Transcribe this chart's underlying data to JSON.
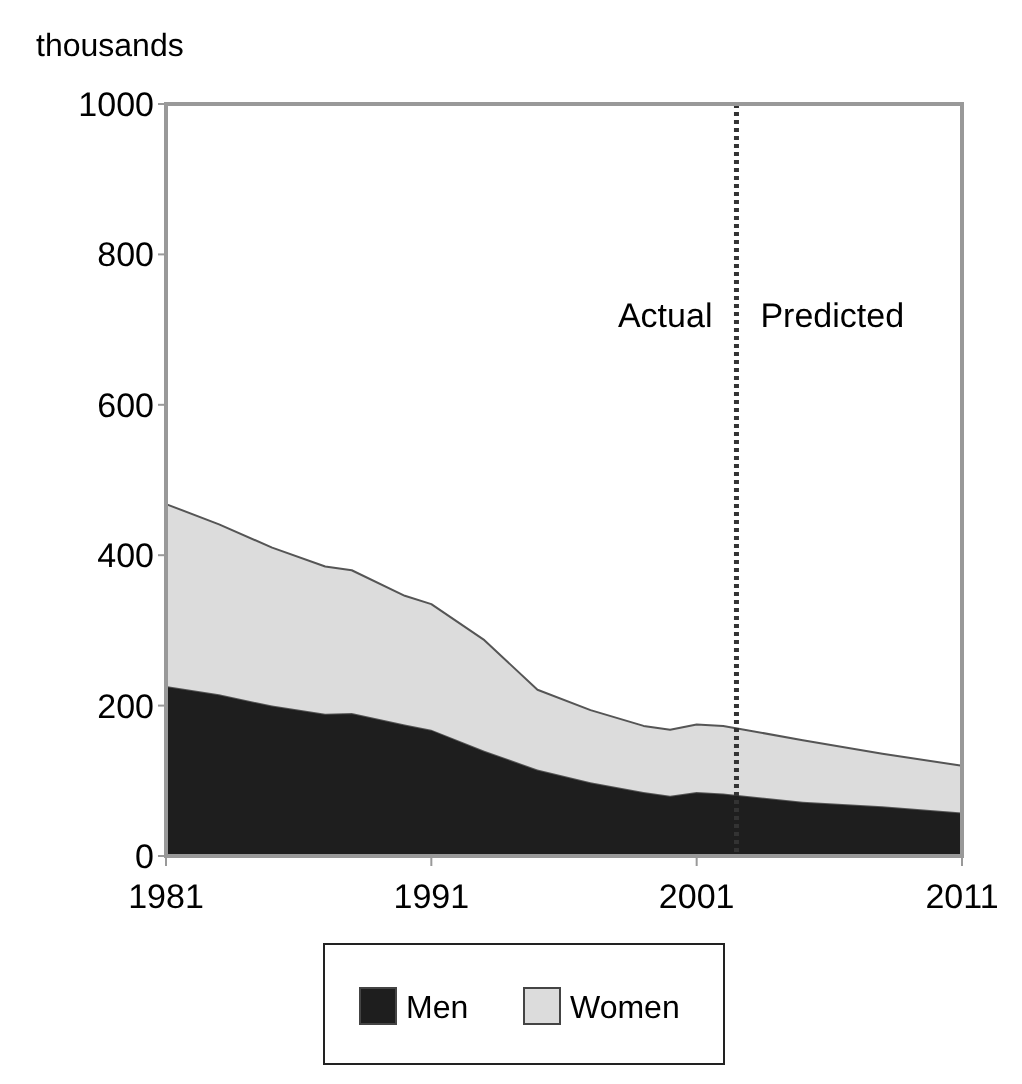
{
  "chart_data": {
    "type": "area",
    "stacked": true,
    "ylabel": "thousands",
    "x": [
      1981,
      1983,
      1985,
      1987,
      1988,
      1990,
      1991,
      1993,
      1995,
      1997,
      1999,
      2000,
      2001,
      2002,
      2005,
      2008,
      2011
    ],
    "series": [
      {
        "name": "Men",
        "color": "#1e1e1e",
        "values": [
          226,
          215,
          200,
          189,
          190,
          175,
          168,
          140,
          115,
          98,
          85,
          80,
          85,
          83,
          72,
          66,
          58
        ]
      },
      {
        "name": "Women",
        "color": "#dcdcdc",
        "values": [
          242,
          226,
          210,
          196,
          190,
          171,
          167,
          147,
          106,
          96,
          88,
          88,
          90,
          90,
          82,
          70,
          62
        ]
      }
    ],
    "xlim": [
      1981,
      2011
    ],
    "xticks": [
      1981,
      1991,
      2001,
      2011
    ],
    "ylim": [
      0,
      1000
    ],
    "yticks": [
      0,
      200,
      400,
      600,
      800,
      1000
    ],
    "ref_lines": [
      {
        "axis": "x",
        "value": 2002.5,
        "line_style": "dotted",
        "color": "#333333"
      }
    ],
    "annotations": [
      "Actual",
      "Predicted"
    ],
    "legend": "bottom",
    "grid": false
  }
}
